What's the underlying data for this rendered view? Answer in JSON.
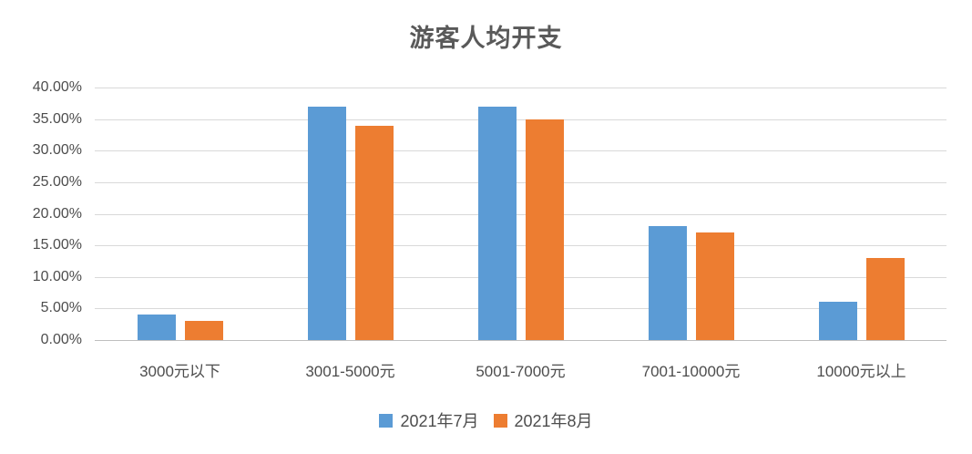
{
  "chart": {
    "title": "游客人均开支"
  },
  "chart_data": {
    "type": "bar",
    "title": "游客人均开支",
    "categories": [
      "3000元以下",
      "3001-5000元",
      "5001-7000元",
      "7001-10000元",
      "10000元以上"
    ],
    "series": [
      {
        "name": "2021年7月",
        "color": "#5B9BD5",
        "values": [
          4,
          37,
          37,
          18,
          6
        ]
      },
      {
        "name": "2021年8月",
        "color": "#ED7D31",
        "values": [
          3,
          34,
          35,
          17,
          13
        ]
      }
    ],
    "value_unit": "%",
    "ylim": [
      0,
      40
    ],
    "y_tick_labels": [
      "0.00%",
      "5.00%",
      "10.00%",
      "15.00%",
      "20.00%",
      "25.00%",
      "30.00%",
      "35.00%",
      "40.00%"
    ],
    "grid": true,
    "legend_position": "bottom"
  }
}
